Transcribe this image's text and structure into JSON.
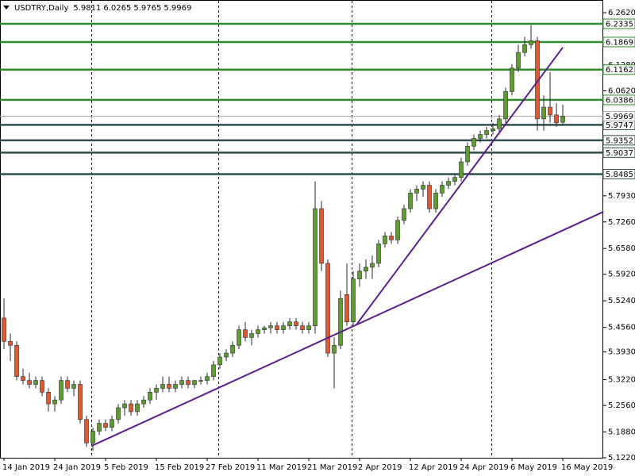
{
  "chart_data": {
    "type": "candlestick",
    "title": "USDTRY,Daily",
    "categories": [
      "14 Jan 2019",
      null,
      null,
      null,
      null,
      null,
      null,
      null,
      "24 Jan 2019",
      null,
      null,
      null,
      null,
      null,
      null,
      null,
      "5 Feb 2019",
      null,
      null,
      null,
      null,
      null,
      null,
      null,
      "15 Feb 2019",
      null,
      null,
      null,
      null,
      null,
      null,
      null,
      "27 Feb 2019",
      null,
      null,
      null,
      null,
      null,
      null,
      null,
      "11 Mar 2019",
      null,
      null,
      null,
      null,
      null,
      null,
      null,
      "21 Mar 2019",
      null,
      null,
      null,
      null,
      null,
      null,
      null,
      "2 Apr 2019",
      null,
      null,
      null,
      null,
      null,
      null,
      null,
      "12 Apr 2019",
      null,
      null,
      null,
      null,
      null,
      null,
      null,
      "24 Apr 2019",
      null,
      null,
      null,
      null,
      null,
      null,
      null,
      "6 May 2019",
      null,
      null,
      null,
      null,
      null,
      null,
      null,
      "16 May 2019"
    ],
    "open": [
      5.48,
      5.42,
      5.41,
      5.33,
      5.32,
      5.31,
      5.32,
      5.29,
      5.26,
      5.27,
      5.32,
      5.3,
      5.31,
      5.22,
      5.16,
      5.19,
      5.21,
      5.2,
      5.22,
      5.25,
      5.26,
      5.24,
      5.26,
      5.27,
      5.29,
      5.3,
      5.31,
      5.3,
      5.31,
      5.32,
      5.31,
      5.32,
      5.32,
      5.33,
      5.36,
      5.38,
      5.39,
      5.41,
      5.45,
      5.43,
      5.44,
      5.45,
      5.455,
      5.46,
      5.45,
      5.46,
      5.47,
      5.46,
      5.45,
      5.46,
      5.76,
      5.62,
      5.39,
      5.41,
      5.54,
      5.47,
      5.58,
      5.6,
      5.61,
      5.62,
      5.67,
      5.69,
      5.68,
      5.73,
      5.76,
      5.8,
      5.81,
      5.82,
      5.76,
      5.8,
      5.82,
      5.83,
      5.84,
      5.88,
      5.92,
      5.94,
      5.95,
      5.96,
      5.965,
      5.99,
      6.06,
      6.12,
      6.16,
      6.18,
      6.19,
      5.99,
      6.02,
      6.0,
      5.9811
    ],
    "high": [
      5.53,
      5.44,
      5.42,
      5.35,
      5.34,
      5.33,
      5.33,
      5.3,
      5.28,
      5.33,
      5.33,
      5.32,
      5.32,
      5.23,
      5.2,
      5.22,
      5.22,
      5.23,
      5.26,
      5.27,
      5.27,
      5.27,
      5.28,
      5.3,
      5.31,
      5.33,
      5.33,
      5.32,
      5.33,
      5.33,
      5.32,
      5.33,
      5.34,
      5.37,
      5.39,
      5.4,
      5.42,
      5.46,
      5.47,
      5.45,
      5.46,
      5.46,
      5.47,
      5.47,
      5.47,
      5.48,
      5.48,
      5.47,
      5.47,
      5.83,
      5.78,
      5.63,
      5.43,
      5.55,
      5.62,
      5.6,
      5.62,
      5.63,
      5.64,
      5.68,
      5.7,
      5.7,
      5.74,
      5.77,
      5.81,
      5.82,
      5.83,
      5.83,
      5.81,
      5.83,
      5.84,
      5.85,
      5.89,
      5.93,
      5.95,
      5.96,
      5.97,
      5.98,
      6.0,
      6.07,
      6.13,
      6.18,
      6.2,
      6.23,
      6.2,
      6.05,
      6.11,
      6.03,
      6.0265
    ],
    "low": [
      5.4,
      5.37,
      5.32,
      5.31,
      5.3,
      5.3,
      5.28,
      5.24,
      5.24,
      5.26,
      5.29,
      5.28,
      5.21,
      5.15,
      5.14,
      5.18,
      5.19,
      5.19,
      5.21,
      5.23,
      5.23,
      5.23,
      5.25,
      5.26,
      5.27,
      5.29,
      5.29,
      5.29,
      5.3,
      5.3,
      5.3,
      5.31,
      5.31,
      5.32,
      5.35,
      5.37,
      5.38,
      5.4,
      5.42,
      5.41,
      5.43,
      5.44,
      5.44,
      5.44,
      5.44,
      5.45,
      5.45,
      5.44,
      5.44,
      5.44,
      5.6,
      5.38,
      5.3,
      5.4,
      5.46,
      5.46,
      5.56,
      5.58,
      5.58,
      5.61,
      5.66,
      5.67,
      5.67,
      5.72,
      5.75,
      5.78,
      5.79,
      5.75,
      5.75,
      5.79,
      5.81,
      5.82,
      5.83,
      5.87,
      5.91,
      5.93,
      5.94,
      5.95,
      5.95,
      5.98,
      6.05,
      6.11,
      6.15,
      6.17,
      5.96,
      5.96,
      5.98,
      5.97,
      5.9765
    ],
    "close": [
      5.42,
      5.41,
      5.33,
      5.32,
      5.31,
      5.32,
      5.29,
      5.26,
      5.27,
      5.32,
      5.3,
      5.31,
      5.22,
      5.16,
      5.19,
      5.21,
      5.2,
      5.22,
      5.25,
      5.26,
      5.24,
      5.26,
      5.27,
      5.29,
      5.3,
      5.31,
      5.3,
      5.31,
      5.32,
      5.31,
      5.32,
      5.32,
      5.33,
      5.36,
      5.38,
      5.39,
      5.41,
      5.45,
      5.43,
      5.44,
      5.45,
      5.455,
      5.46,
      5.45,
      5.46,
      5.47,
      5.46,
      5.45,
      5.46,
      5.76,
      5.62,
      5.39,
      5.41,
      5.53,
      5.47,
      5.58,
      5.6,
      5.61,
      5.62,
      5.67,
      5.69,
      5.68,
      5.73,
      5.76,
      5.8,
      5.81,
      5.82,
      5.76,
      5.8,
      5.82,
      5.83,
      5.84,
      5.88,
      5.92,
      5.94,
      5.95,
      5.96,
      5.965,
      5.99,
      6.06,
      6.12,
      6.16,
      6.18,
      6.19,
      5.99,
      6.02,
      6.0,
      5.98,
      5.9969
    ],
    "up_color": "#5b9e2a",
    "down_color": "#e8542c",
    "wick_color": "#2a2a2a",
    "ylim": [
      5.122,
      6.2945
    ],
    "yticks": [
      {
        "value": 6.262,
        "label": "6.2620"
      },
      {
        "value": 6.128,
        "label": "6.1280"
      },
      {
        "value": 6.062,
        "label": "6.0620"
      },
      {
        "value": 5.793,
        "label": "5.7930"
      },
      {
        "value": 5.726,
        "label": "5.7260"
      },
      {
        "value": 5.658,
        "label": "5.6580"
      },
      {
        "value": 5.592,
        "label": "5.5920"
      },
      {
        "value": 5.524,
        "label": "5.5240"
      },
      {
        "value": 5.456,
        "label": "5.4560"
      },
      {
        "value": 5.393,
        "label": "5.3930"
      },
      {
        "value": 5.322,
        "label": "5.3220"
      },
      {
        "value": 5.256,
        "label": "5.2560"
      },
      {
        "value": 5.188,
        "label": "5.1880"
      },
      {
        "value": 5.122,
        "label": "5.1220"
      }
    ],
    "levels": [
      {
        "value": 6.2335,
        "color": "#2e8b2e"
      },
      {
        "value": 6.1869,
        "color": "#2e8b2e"
      },
      {
        "value": 6.1162,
        "color": "#2e8b2e"
      },
      {
        "value": 6.0386,
        "color": "#2e8b2e"
      },
      {
        "value": 5.9747,
        "color": "#2f4f4f"
      },
      {
        "value": 5.9352,
        "color": "#2f4f4f"
      },
      {
        "value": 5.9037,
        "color": "#2f4f4f"
      },
      {
        "value": 5.8485,
        "color": "#2f4f4f"
      }
    ],
    "trendlines": [
      {
        "start": [
          13.75,
          5.152
        ],
        "end": [
          94.4,
          5.752
        ],
        "color": "#5b1f8c"
      },
      {
        "start": [
          55.6,
          5.465
        ],
        "end": [
          88,
          6.173
        ],
        "color": "#5b1f8c"
      }
    ]
  }
}
